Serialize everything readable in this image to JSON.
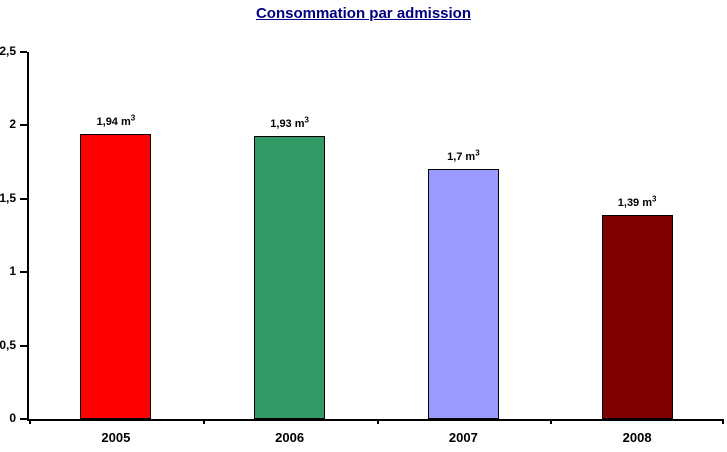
{
  "chart_data": {
    "type": "bar",
    "title": "Consommation par admission",
    "title_color": "#000080",
    "categories": [
      "2005",
      "2006",
      "2007",
      "2008"
    ],
    "values": [
      1.94,
      1.93,
      1.7,
      1.39
    ],
    "value_labels": [
      "1,94 m",
      "1,93 m",
      "1,7 m",
      "1,39 m"
    ],
    "value_label_exponent": "3",
    "bar_colors": [
      "#FF0000",
      "#339966",
      "#9999FF",
      "#800000"
    ],
    "bar_border_color": "#000000",
    "axis_color": "#000000",
    "xlabel": "",
    "ylabel": "",
    "ylim": [
      0,
      2.5
    ],
    "ytick_step": 0.5,
    "ytick_labels": [
      "0",
      "0,5",
      "1",
      "1,5",
      "2",
      "2,5"
    ],
    "grid": false,
    "legend": "none",
    "background": "#ffffff"
  }
}
